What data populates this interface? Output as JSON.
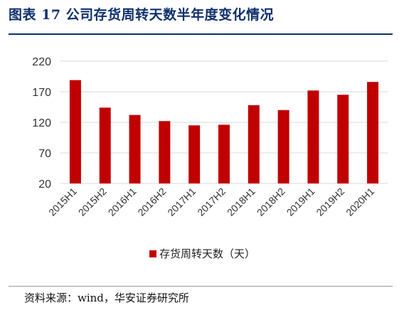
{
  "header": {
    "title": "图表 17 公司存货周转天数半年度变化情况"
  },
  "chart_data": {
    "type": "bar",
    "categories": [
      "2015H1",
      "2015H2",
      "2016H1",
      "2016H2",
      "2017H1",
      "2017H2",
      "2018H1",
      "2018H2",
      "2019H1",
      "2019H2",
      "2020H1"
    ],
    "series": [
      {
        "name": "存货周转天数（天）",
        "values": [
          189,
          144,
          132,
          122,
          115,
          116,
          148,
          140,
          172,
          165,
          186
        ]
      }
    ],
    "ylim": [
      20,
      220
    ],
    "yticks": [
      "20",
      "70",
      "120",
      "170",
      "220"
    ],
    "grid": true,
    "legend": "bottom",
    "colors": {
      "bar": "#c00000",
      "grid": "#d9d9d9",
      "title": "#0d2f6d"
    }
  },
  "footer": {
    "source": "资料来源：wind，华安证券研究所"
  }
}
